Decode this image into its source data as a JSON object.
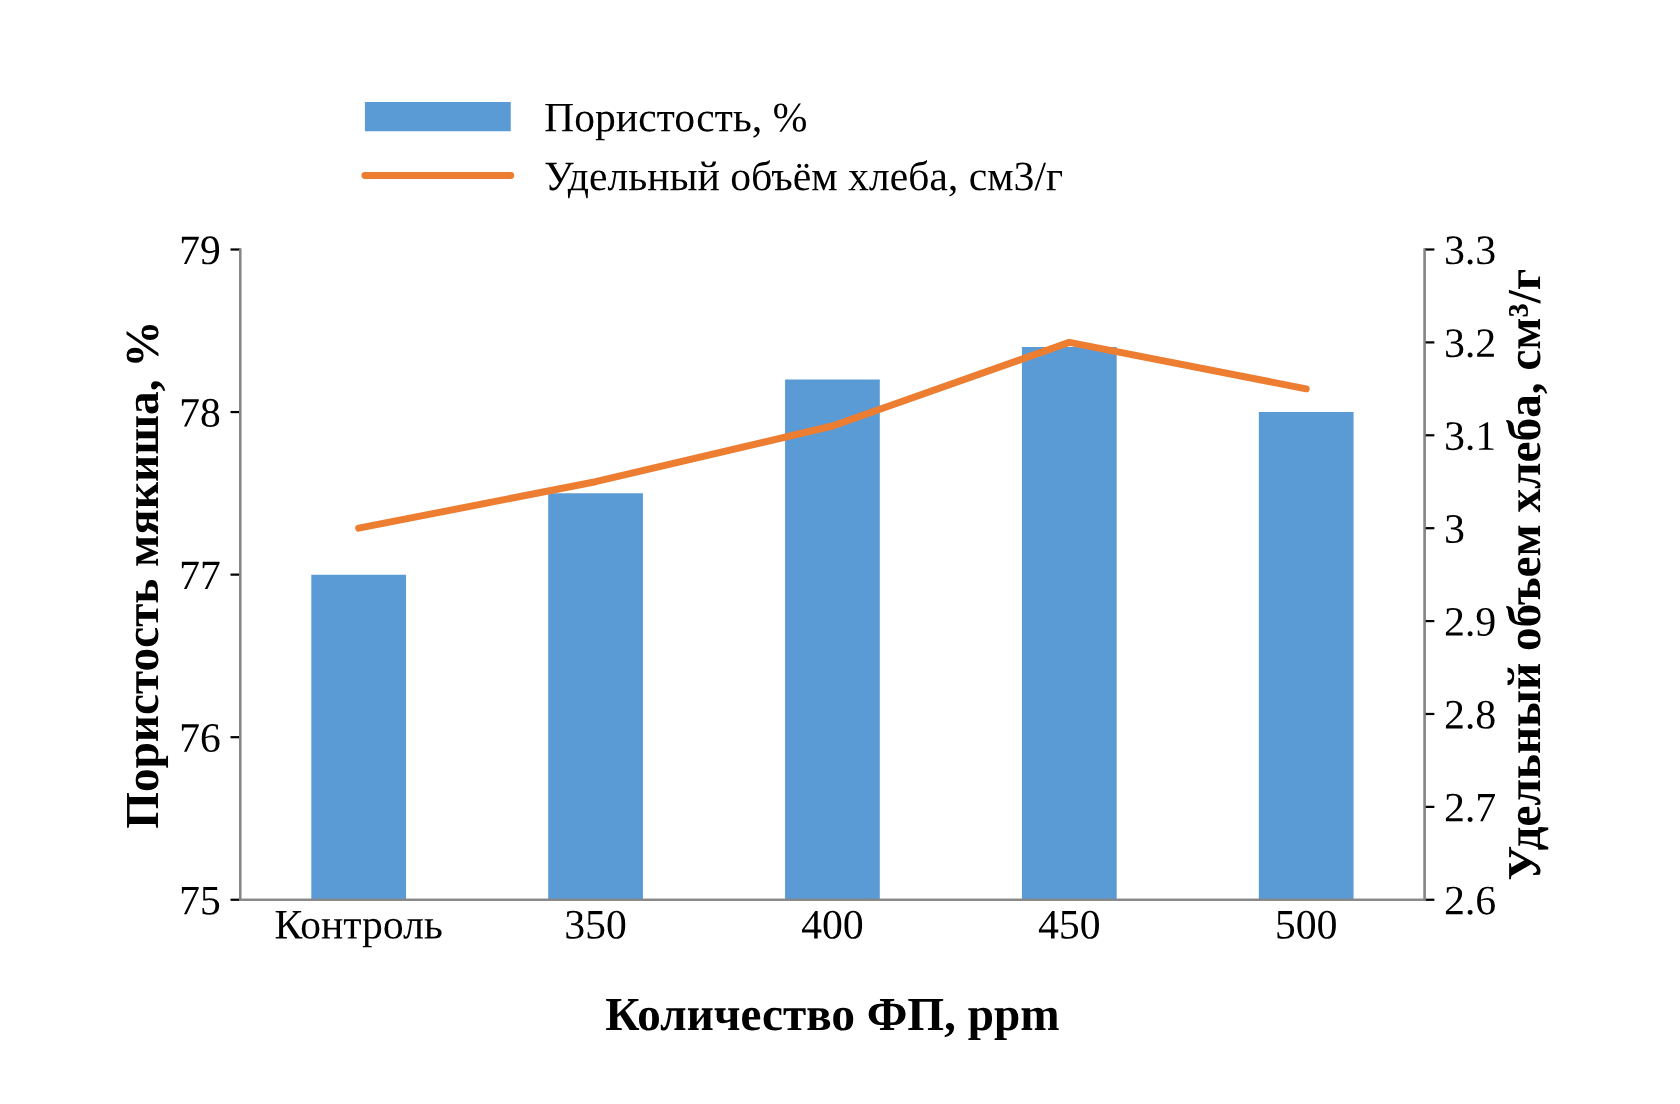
{
  "chart_data": {
    "type": "bar",
    "xlabel": "Количество ФП, ppm",
    "ylabel": "Пористость мякиша, %",
    "y2label": "Удельный объем хлеба, см³/г",
    "categories": [
      "Контроль",
      "350",
      "400",
      "450",
      "500"
    ],
    "series": [
      {
        "name": "Пористость, %",
        "color": "#5b9bd5",
        "values": [
          77,
          77.5,
          78.2,
          78.4,
          78.0
        ]
      },
      {
        "name": "Удельный объём хлеба, см3/г",
        "type": "line",
        "axis": "y2",
        "color": "#ed7d31",
        "values": [
          3.0,
          3.05,
          3.11,
          3.2,
          3.15
        ]
      }
    ],
    "ylim": [
      75,
      79
    ],
    "yticks": [
      75,
      76,
      77,
      78,
      79
    ],
    "y2lim": [
      2.6,
      3.3
    ],
    "y2ticks": [
      2.6,
      2.7,
      2.8,
      2.9,
      3,
      3.1,
      3.2,
      3.3
    ],
    "grid": false,
    "legend": "top",
    "marker": "none"
  }
}
